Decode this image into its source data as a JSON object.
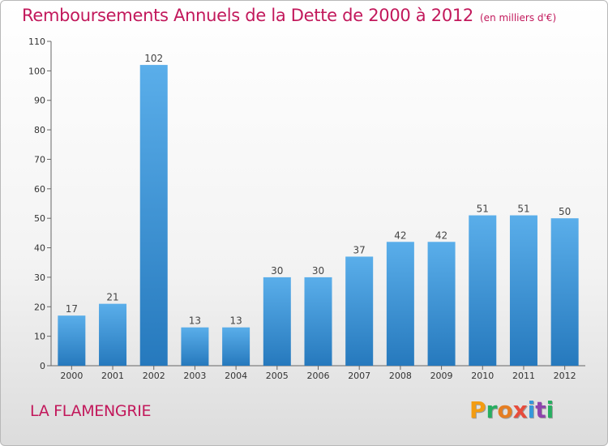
{
  "header": {
    "title": "Remboursements Annuels de la Dette de 2000 à 2012",
    "unit": "(en milliers d'€)"
  },
  "footer": {
    "city": "LA FLAMENGRIE",
    "logo_letters": [
      "P",
      "r",
      "o",
      "x",
      "i",
      "t",
      "i"
    ],
    "logo_colors": [
      "#f39c12",
      "#27ae60",
      "#e67e22",
      "#e74c3c",
      "#3498db",
      "#8e44ad",
      "#27ae60"
    ]
  },
  "chart_data": {
    "type": "bar",
    "title": "Remboursements Annuels de la Dette de 2000 à 2012",
    "categories": [
      "2000",
      "2001",
      "2002",
      "2003",
      "2004",
      "2005",
      "2006",
      "2007",
      "2008",
      "2009",
      "2010",
      "2011",
      "2012"
    ],
    "values": [
      17,
      21,
      102,
      13,
      13,
      30,
      30,
      37,
      42,
      42,
      51,
      51,
      50
    ],
    "ylim": [
      0,
      110
    ],
    "yticks": [
      0,
      10,
      20,
      30,
      40,
      50,
      60,
      70,
      80,
      90,
      100,
      110
    ],
    "grid": false,
    "bar_color": "#3a8fd6"
  }
}
